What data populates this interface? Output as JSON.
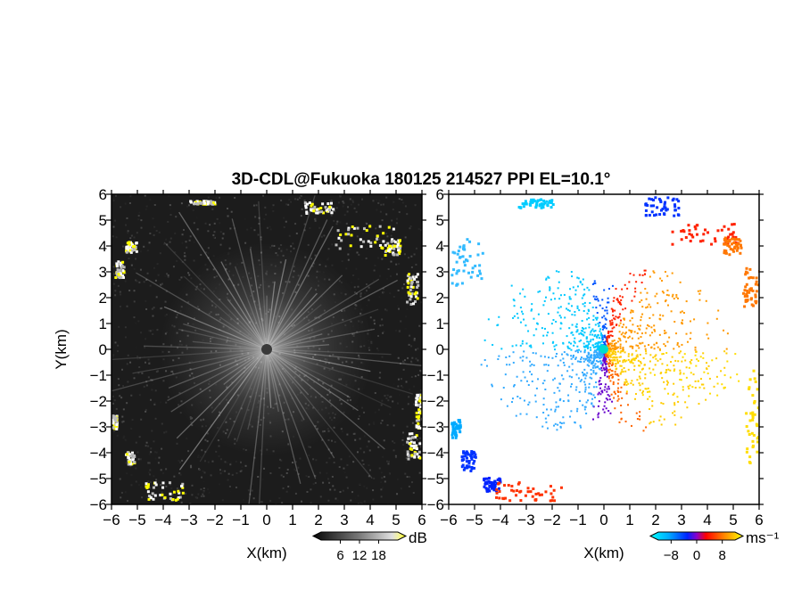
{
  "chart_data": [
    {
      "type": "heatmap",
      "title": "3D-CDL@Fukuoka 180125 214527 PPI EL=10.1°",
      "xlabel": "X(km)",
      "ylabel": "Y(km)",
      "xlim": [
        -6,
        6
      ],
      "ylim": [
        -6,
        6
      ],
      "x_ticks": [
        "-6",
        "-5",
        "-4",
        "-3",
        "-2",
        "-1",
        "0",
        "1",
        "2",
        "3",
        "4",
        "5",
        "6"
      ],
      "y_ticks": [
        "6",
        "5",
        "4",
        "3",
        "2",
        "1",
        "0",
        "-1",
        "-2",
        "-3",
        "-4",
        "-5",
        "-6"
      ],
      "colorbar": {
        "unit": "dB",
        "ticks": [
          "6",
          "12",
          "18"
        ],
        "range": [
          0,
          24
        ],
        "colormap": "grayscale-yellow-high"
      },
      "background": "#1c1c1c"
    },
    {
      "type": "heatmap",
      "xlabel": "X(km)",
      "xlim": [
        -6,
        6
      ],
      "ylim": [
        -6,
        6
      ],
      "x_ticks": [
        "-6",
        "-5",
        "-4",
        "-3",
        "-2",
        "-1",
        "0",
        "1",
        "2",
        "3",
        "4",
        "5",
        "6"
      ],
      "y_ticks": [
        "6",
        "5",
        "4",
        "3",
        "2",
        "1",
        "0",
        "-1",
        "-2",
        "-3",
        "-4",
        "-5",
        "-6"
      ],
      "colorbar": {
        "unit": "ms⁻¹",
        "ticks": [
          "-8",
          "0",
          "8"
        ],
        "range": [
          -12,
          12
        ],
        "colormap": "cyan-blue-red-orange-yellow"
      },
      "background": "#ffffff"
    }
  ]
}
